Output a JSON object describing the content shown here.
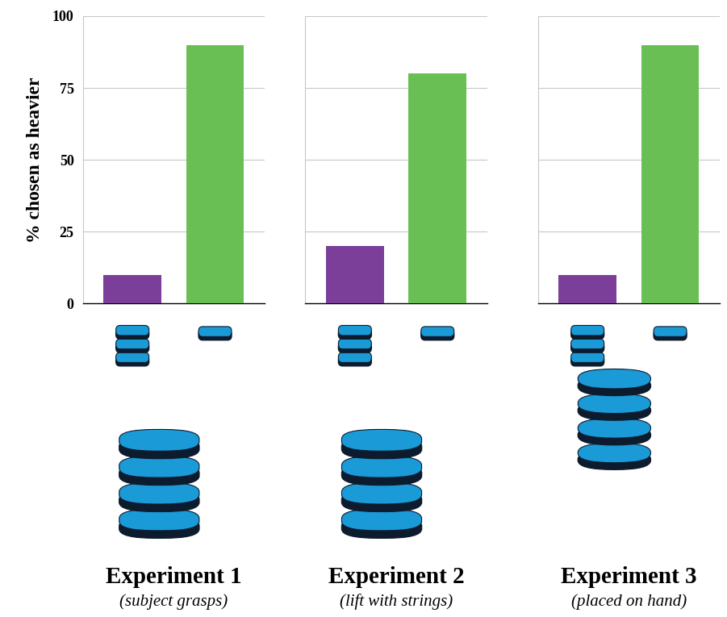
{
  "chart_data": [
    {
      "type": "bar",
      "title": "Experiment 1",
      "subtitle": "(subject grasps)",
      "y_label": "% chosen as heavier",
      "categories": [
        null,
        null
      ],
      "values": [
        10,
        90
      ],
      "colors": [
        "#7b3f9a",
        "#6abf54"
      ],
      "ylim": [
        0,
        100
      ],
      "yticks": [
        0,
        25,
        50,
        75,
        100
      ],
      "grid": true,
      "tick_labels": "y"
    },
    {
      "type": "bar",
      "title": "Experiment 2",
      "subtitle": "(lift with strings)",
      "categories": [
        null,
        null
      ],
      "values": [
        20,
        80
      ],
      "colors": [
        "#7b3f9a",
        "#6abf54"
      ],
      "ylim": [
        0,
        100
      ],
      "yticks": [
        0,
        25,
        50,
        75,
        100
      ],
      "grid": true,
      "tick_labels": false
    },
    {
      "type": "bar",
      "title": "Experiment 3",
      "subtitle": "(placed on hand)",
      "categories": [
        null,
        null
      ],
      "values": [
        10,
        90
      ],
      "colors": [
        "#7b3f9a",
        "#6abf54"
      ],
      "ylim": [
        0,
        100
      ],
      "yticks": [
        0,
        25,
        50,
        75,
        100
      ],
      "grid": true,
      "tick_labels": false
    }
  ]
}
